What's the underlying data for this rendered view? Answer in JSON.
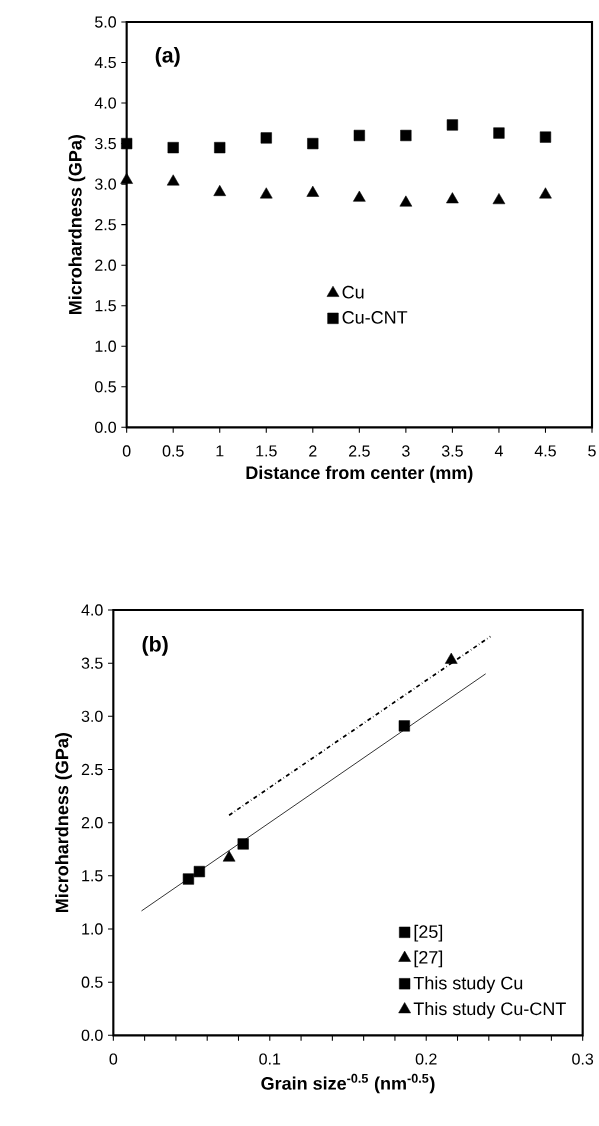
{
  "chart_data": [
    {
      "type": "scatter",
      "xlabel": "Distance from center (mm)",
      "ylabel": "Microhardness (GPa)",
      "annotations": [
        "(a)"
      ],
      "x": [
        0,
        0.5,
        1,
        1.5,
        2,
        2.5,
        3,
        3.5,
        4,
        4.5
      ],
      "series": [
        {
          "name": "Cu",
          "color": "#000000",
          "marker": "triangle",
          "values": [
            3.05,
            3.03,
            2.9,
            2.87,
            2.89,
            2.83,
            2.77,
            2.81,
            2.8,
            2.87
          ]
        },
        {
          "name": "Cu-CNT",
          "color": "#000000",
          "marker": "square",
          "values": [
            3.5,
            3.45,
            3.45,
            3.57,
            3.5,
            3.6,
            3.6,
            3.73,
            3.63,
            3.58
          ]
        }
      ],
      "xlim": [
        0,
        5
      ],
      "xticks": [
        0,
        0.5,
        1,
        1.5,
        2,
        2.5,
        3,
        3.5,
        4,
        4.5,
        5
      ],
      "ylim": [
        0,
        5
      ],
      "yticks": [
        {
          "value": 0,
          "label": "0.0"
        },
        {
          "value": 0.5,
          "label": "0.5"
        },
        {
          "value": 1,
          "label": "1.0"
        },
        {
          "value": 1.5,
          "label": "1.5"
        },
        {
          "value": 2,
          "label": "2.0"
        },
        {
          "value": 2.5,
          "label": "2.5"
        },
        {
          "value": 3,
          "label": "3.0"
        },
        {
          "value": 3.5,
          "label": "3.5"
        },
        {
          "value": 4,
          "label": "4.0"
        },
        {
          "value": 4.5,
          "label": "4.5"
        },
        {
          "value": 5,
          "label": "5.0"
        }
      ],
      "legend": "center",
      "grid": false
    },
    {
      "type": "scatter",
      "xlabel": "Grain size$^{-0.5}$ (nm$^{-0.5}$)",
      "ylabel": "Microhardness (GPa)",
      "annotations": [
        "(b)"
      ],
      "series": [
        {
          "name": "[25]",
          "color": "#000000",
          "marker": "square",
          "x": [
            0.048,
            0.055,
            0.083
          ],
          "values": [
            1.47,
            1.54,
            1.8
          ]
        },
        {
          "name": "[27]",
          "color": "#000000",
          "marker": "triangle",
          "x": [
            0.074
          ],
          "values": [
            1.67
          ]
        },
        {
          "name": "This study Cu",
          "color": "#000000",
          "marker": "square",
          "x": [
            0.186
          ],
          "values": [
            2.91
          ]
        },
        {
          "name": "This study Cu-CNT",
          "color": "#000000",
          "marker": "triangle",
          "x": [
            0.216
          ],
          "values": [
            3.53
          ]
        },
        {
          "type": "line",
          "color": "#000000",
          "line_style": "solid",
          "x": [
            0.018,
            0.238
          ],
          "values": [
            1.17,
            3.4
          ]
        },
        {
          "type": "line",
          "color": "#000000",
          "line_style": "dashed",
          "x": [
            0.074,
            0.241
          ],
          "values": [
            2.07,
            3.75
          ]
        }
      ],
      "xlim": [
        0,
        0.3
      ],
      "xticks": [
        0,
        {
          "value": 0.02,
          "label": null
        },
        {
          "value": 0.04,
          "label": null
        },
        {
          "value": 0.06,
          "label": null
        },
        {
          "value": 0.08,
          "label": null
        },
        0.1,
        {
          "value": 0.12,
          "label": null
        },
        {
          "value": 0.14,
          "label": null
        },
        {
          "value": 0.16,
          "label": null
        },
        {
          "value": 0.18,
          "label": null
        },
        0.2,
        {
          "value": 0.22,
          "label": null
        },
        {
          "value": 0.24,
          "label": null
        },
        {
          "value": 0.26,
          "label": null
        },
        {
          "value": 0.28,
          "label": null
        },
        0.3
      ],
      "ylim": [
        0,
        4
      ],
      "yticks": [
        {
          "value": 0,
          "label": "0.0"
        },
        {
          "value": 0.5,
          "label": "0.5"
        },
        {
          "value": 1,
          "label": "1.0"
        },
        {
          "value": 1.5,
          "label": "1.5"
        },
        {
          "value": 2,
          "label": "2.0"
        },
        {
          "value": 2.5,
          "label": "2.5"
        },
        {
          "value": 3,
          "label": "3.0"
        },
        {
          "value": 3.5,
          "label": "3.5"
        },
        {
          "value": 4,
          "label": "4.0"
        }
      ],
      "legend": "bottom right",
      "grid": false
    }
  ]
}
